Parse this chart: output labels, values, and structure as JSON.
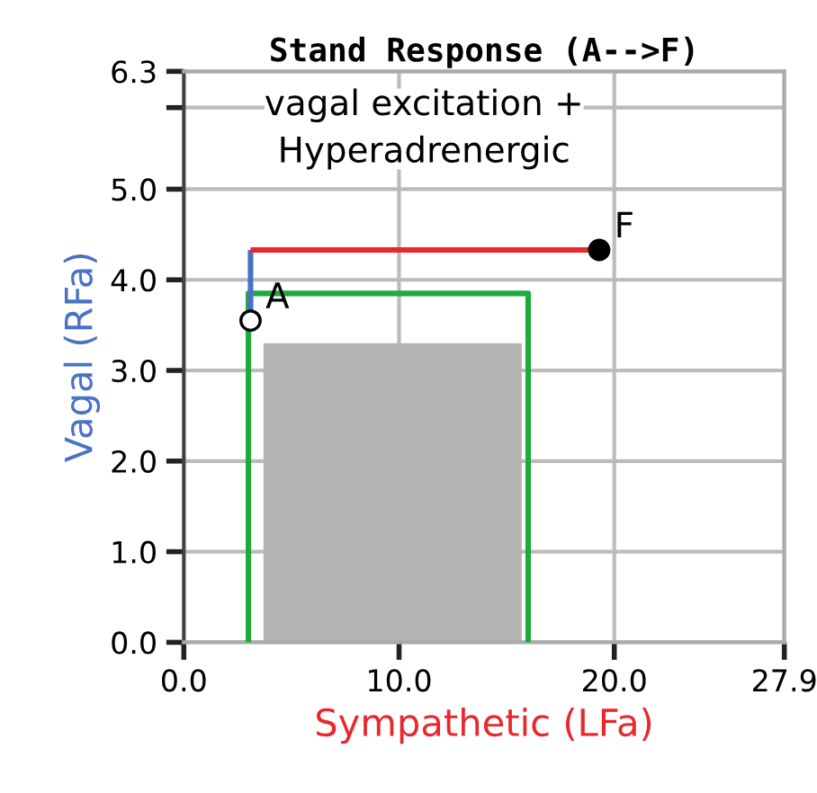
{
  "chart_data": {
    "type": "line",
    "title": "Stand Response (A-->F)",
    "xlabel": "Sympathetic (LFa)",
    "ylabel": "Vagal (RFa)",
    "xlim": [
      0,
      27.9
    ],
    "ylim": [
      0,
      6.3
    ],
    "xticks": [
      {
        "value": 0,
        "label": "0.0"
      },
      {
        "value": 10,
        "label": "10.0"
      },
      {
        "value": 20,
        "label": "20.0"
      },
      {
        "value": 27.9,
        "label": "27.9"
      }
    ],
    "yticks": [
      {
        "value": 0,
        "label": "0.0"
      },
      {
        "value": 1,
        "label": "1.0"
      },
      {
        "value": 2,
        "label": "2.0"
      },
      {
        "value": 3,
        "label": "3.0"
      },
      {
        "value": 4,
        "label": "4.0"
      },
      {
        "value": 5,
        "label": "5.0"
      },
      {
        "value": 5.9,
        "label": null
      },
      {
        "value": 6.3,
        "label": "6.3"
      }
    ],
    "grid": true,
    "series": [
      {
        "type": "area",
        "color": "#b3b3b3",
        "x": [
          3.7,
          3.7,
          15.7,
          15.7
        ],
        "values": [
          0,
          3.3,
          3.3,
          0
        ]
      },
      {
        "color": "#1faa3c",
        "x": [
          3.0,
          3.0,
          16.0,
          16.0
        ],
        "values": [
          0,
          3.85,
          3.85,
          0
        ]
      },
      {
        "color": "#4a72c4",
        "x": [
          3.1,
          3.1
        ],
        "values": [
          3.55,
          4.33
        ]
      },
      {
        "color": "#e8282d",
        "x": [
          3.1,
          19.3
        ],
        "values": [
          4.33,
          4.33
        ]
      },
      {
        "type": "scatter",
        "color": "#ffffff",
        "marker": "circle",
        "x": [
          3.1
        ],
        "values": [
          3.55
        ]
      },
      {
        "type": "scatter",
        "color": "#000000",
        "marker": "circle",
        "x": [
          19.3
        ],
        "values": [
          4.33
        ]
      }
    ],
    "annotations": [
      "vagal excitation +\nHyperadrenergic",
      {
        "text": "A",
        "x": 3.1,
        "y": 3.55
      },
      {
        "text": "F",
        "x": 19.3,
        "y": 4.33
      }
    ]
  }
}
